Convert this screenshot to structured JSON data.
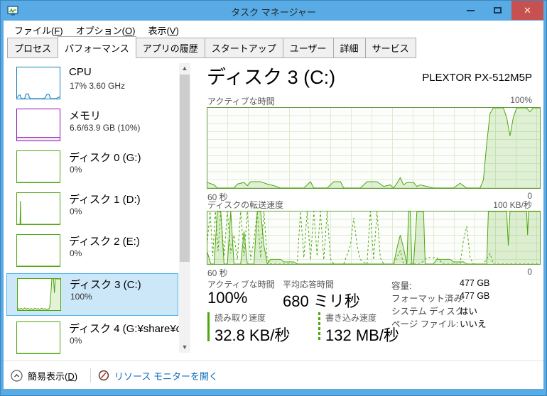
{
  "window": {
    "title": "タスク マネージャー"
  },
  "menu": {
    "items": [
      {
        "pre": "ファイル(",
        "key": "F",
        "post": ")"
      },
      {
        "pre": "オプション(",
        "key": "O",
        "post": ")"
      },
      {
        "pre": "表示(",
        "key": "V",
        "post": ")"
      }
    ]
  },
  "tabs": [
    {
      "label": "プロセス"
    },
    {
      "label": "パフォーマンス"
    },
    {
      "label": "アプリの履歴"
    },
    {
      "label": "スタートアップ"
    },
    {
      "label": "ユーザー"
    },
    {
      "label": "詳細"
    },
    {
      "label": "サービス"
    }
  ],
  "sidebar": {
    "items": [
      {
        "title": "CPU",
        "subtitle": "17% 3.60 GHz",
        "spark": {
          "color": "#117dbb",
          "fill": "#eaf5fc",
          "points": [
            [
              0,
              3
            ],
            [
              4,
              10
            ],
            [
              7,
              12
            ],
            [
              9,
              3
            ],
            [
              12,
              0
            ],
            [
              18,
              0
            ],
            [
              20,
              14
            ],
            [
              22,
              15
            ],
            [
              27,
              15
            ],
            [
              29,
              3
            ],
            [
              32,
              0
            ],
            [
              62,
              0
            ],
            [
              66,
              3
            ],
            [
              70,
              14
            ],
            [
              75,
              14
            ],
            [
              78,
              3
            ],
            [
              80,
              0
            ],
            [
              92,
              0
            ],
            [
              96,
              4
            ],
            [
              100,
              5
            ]
          ]
        }
      },
      {
        "title": "メモリ",
        "subtitle": "6.6/63.9 GB (10%)",
        "spark": {
          "color": "#8b12ae",
          "fill": "#f6eaf9",
          "points": [
            [
              0,
              10
            ],
            [
              100,
              10
            ]
          ]
        }
      },
      {
        "title": "ディスク 0 (G:)",
        "subtitle": "0%",
        "spark": {
          "color": "#4da60c",
          "fill": "#eef7e4",
          "points": [
            [
              0,
              0
            ],
            [
              100,
              0
            ]
          ]
        }
      },
      {
        "title": "ディスク 1 (D:)",
        "subtitle": "0%",
        "spark": {
          "color": "#4da60c",
          "fill": "#eef7e4",
          "points": [
            [
              0,
              0
            ],
            [
              7,
              0
            ],
            [
              8,
              75
            ],
            [
              9,
              0
            ],
            [
              100,
              0
            ]
          ]
        }
      },
      {
        "title": "ディスク 2 (E:)",
        "subtitle": "0%",
        "spark": {
          "color": "#4da60c",
          "fill": "#eef7e4",
          "points": [
            [
              0,
              0
            ],
            [
              100,
              0
            ]
          ]
        }
      },
      {
        "title": "ディスク 3 (C:)",
        "subtitle": "100%",
        "selected": true,
        "spark": {
          "color": "#4da60c",
          "fill": "#e4f2d6",
          "points": [
            [
              0,
              7
            ],
            [
              4,
              2
            ],
            [
              8,
              6
            ],
            [
              12,
              2
            ],
            [
              16,
              7
            ],
            [
              20,
              3
            ],
            [
              24,
              6
            ],
            [
              28,
              2
            ],
            [
              32,
              5
            ],
            [
              36,
              2
            ],
            [
              40,
              6
            ],
            [
              44,
              3
            ],
            [
              48,
              5
            ],
            [
              52,
              2
            ],
            [
              56,
              6
            ],
            [
              60,
              3
            ],
            [
              64,
              5
            ],
            [
              68,
              2
            ],
            [
              72,
              3
            ],
            [
              75,
              8
            ],
            [
              78,
              60
            ],
            [
              80,
              100
            ],
            [
              84,
              100
            ],
            [
              86,
              55
            ],
            [
              88,
              100
            ],
            [
              100,
              100
            ]
          ]
        }
      },
      {
        "title": "ディスク 4 (G:¥share¥c",
        "subtitle": "0%",
        "spark": {
          "color": "#4da60c",
          "fill": "#eef7e4",
          "points": [
            [
              0,
              0
            ],
            [
              100,
              0
            ]
          ]
        }
      }
    ]
  },
  "main": {
    "title": "ディスク 3 (C:)",
    "device": "PLEXTOR PX-512M5P",
    "stats": [
      {
        "label": "アクティブな時間",
        "value": "100%"
      },
      {
        "label": "平均応答時間",
        "value": "680 ミリ秒"
      },
      {
        "label": "読み取り速度",
        "value": "32.8 KB/秒"
      },
      {
        "label": "書き込み速度",
        "value": "132 MB/秒"
      }
    ],
    "details": [
      {
        "key": "容量:",
        "value": "477 GB"
      },
      {
        "key": "フォーマット済み:",
        "value": "477 GB"
      },
      {
        "key": "システム ディスク:",
        "value": "はい"
      },
      {
        "key": "ページ ファイル:",
        "value": "いいえ"
      }
    ]
  },
  "statusbar": {
    "simple_pre": "簡易表示(",
    "simple_key": "D",
    "simple_post": ")",
    "resmon_link": "リソース モニターを開く"
  },
  "colors": {
    "titlebar": "#58abe4",
    "close_button": "#c75050",
    "disk_green": "#4da60c",
    "cpu_blue": "#117dbb",
    "memory_purple": "#8b12ae",
    "selection": "#cbe7f8",
    "link": "#0b6cbd"
  },
  "chart_data": [
    {
      "type": "area",
      "title": "アクティブな時間",
      "ylabel_max": "100%",
      "xlabel_left": "60 秒",
      "xlabel_right": "0",
      "ylim": [
        0,
        100
      ],
      "xlim_seconds": [
        60,
        0
      ],
      "grid": true,
      "series": [
        {
          "name": "アクティブな時間",
          "color": "#4da60c",
          "fill": "rgba(77,166,12,0.16)",
          "points": [
            [
              0,
              7
            ],
            [
              2,
              4
            ],
            [
              3,
              0
            ],
            [
              8,
              0
            ],
            [
              9,
              5
            ],
            [
              11,
              7
            ],
            [
              12,
              3
            ],
            [
              13,
              8
            ],
            [
              16,
              8
            ],
            [
              18,
              5
            ],
            [
              20,
              3
            ],
            [
              22,
              0
            ],
            [
              29,
              0
            ],
            [
              31,
              8
            ],
            [
              32,
              0
            ],
            [
              36,
              0
            ],
            [
              38,
              8
            ],
            [
              40,
              8
            ],
            [
              41,
              0
            ],
            [
              46,
              0
            ],
            [
              48,
              8
            ],
            [
              51,
              8
            ],
            [
              53,
              2
            ],
            [
              55,
              4
            ],
            [
              56,
              0
            ],
            [
              57,
              6
            ],
            [
              58,
              13
            ],
            [
              59,
              4
            ],
            [
              60,
              7
            ],
            [
              62,
              7
            ],
            [
              63,
              2
            ],
            [
              64,
              4
            ],
            [
              66,
              2
            ],
            [
              68,
              0
            ],
            [
              74,
              0
            ],
            [
              76,
              6
            ],
            [
              78,
              0
            ],
            [
              82,
              0
            ],
            [
              83,
              10
            ],
            [
              84,
              55
            ],
            [
              85,
              93
            ],
            [
              86,
              100
            ],
            [
              89,
              100
            ],
            [
              90,
              88
            ],
            [
              91,
              65
            ],
            [
              92,
              88
            ],
            [
              93,
              100
            ],
            [
              96,
              100
            ],
            [
              97,
              95
            ],
            [
              98,
              100
            ],
            [
              100,
              100
            ]
          ]
        }
      ]
    },
    {
      "type": "line",
      "title": "ディスクの転送速度",
      "ylabel_max": "100 KB/秒",
      "xlabel_left": "60 秒",
      "xlabel_right": "0",
      "ylim": [
        0,
        100
      ],
      "xlim_seconds": [
        60,
        0
      ],
      "grid": true,
      "series": [
        {
          "name": "読み取り速度",
          "color": "#4da60c",
          "fill": "rgba(77,166,12,0.18)",
          "points": [
            [
              0,
              22
            ],
            [
              1,
              0
            ],
            [
              2,
              0
            ],
            [
              3,
              100
            ],
            [
              4,
              100
            ],
            [
              5,
              0
            ],
            [
              6,
              0
            ],
            [
              7,
              100
            ],
            [
              8,
              0
            ],
            [
              10,
              0
            ],
            [
              11,
              62
            ],
            [
              12,
              0
            ],
            [
              14,
              0
            ],
            [
              15,
              100
            ],
            [
              16,
              100
            ],
            [
              17,
              35
            ],
            [
              18,
              0
            ],
            [
              19,
              9
            ],
            [
              22,
              9
            ],
            [
              23,
              4
            ],
            [
              26,
              4
            ],
            [
              27,
              0
            ],
            [
              56,
              0
            ],
            [
              57,
              30
            ],
            [
              58,
              55
            ],
            [
              59,
              30
            ],
            [
              60,
              0
            ],
            [
              60.5,
              100
            ],
            [
              61,
              100
            ],
            [
              61.5,
              0
            ],
            [
              62,
              0
            ],
            [
              63,
              100
            ],
            [
              65,
              100
            ],
            [
              65.5,
              0
            ],
            [
              68,
              0
            ],
            [
              69,
              9
            ],
            [
              73,
              9
            ],
            [
              74,
              4
            ],
            [
              77,
              4
            ],
            [
              78,
              0
            ],
            [
              84,
              0
            ],
            [
              84.5,
              100
            ],
            [
              90,
              100
            ],
            [
              90.5,
              35
            ],
            [
              91,
              100
            ],
            [
              96,
              100
            ],
            [
              96.3,
              55
            ],
            [
              96.6,
              100
            ],
            [
              100,
              100
            ]
          ]
        },
        {
          "name": "書き込み速度",
          "color": "#4da60c",
          "dashed": true,
          "points": [
            [
              0,
              45
            ],
            [
              0.8,
              100
            ],
            [
              1.6,
              15
            ],
            [
              2.4,
              100
            ],
            [
              3.2,
              25
            ],
            [
              4,
              100
            ],
            [
              5,
              15
            ],
            [
              6,
              100
            ],
            [
              7,
              20
            ],
            [
              8,
              55
            ],
            [
              9,
              8
            ],
            [
              10,
              100
            ],
            [
              11,
              15
            ],
            [
              12,
              100
            ],
            [
              13,
              8
            ],
            [
              14,
              45
            ],
            [
              15,
              100
            ],
            [
              16,
              12
            ],
            [
              17,
              100
            ],
            [
              18,
              8
            ],
            [
              19,
              0
            ],
            [
              27,
              0
            ],
            [
              28,
              100
            ],
            [
              29,
              12
            ],
            [
              30,
              100
            ],
            [
              31,
              8
            ],
            [
              32,
              100
            ],
            [
              33,
              15
            ],
            [
              34,
              100
            ],
            [
              35,
              8
            ],
            [
              36,
              100
            ],
            [
              37,
              10
            ],
            [
              38,
              0
            ],
            [
              41,
              0
            ],
            [
              43,
              35
            ],
            [
              44,
              88
            ],
            [
              45,
              35
            ],
            [
              46,
              8
            ],
            [
              48,
              0
            ],
            [
              49,
              100
            ],
            [
              50,
              8
            ],
            [
              51,
              100
            ],
            [
              52,
              12
            ],
            [
              53,
              0
            ],
            [
              56,
              0
            ],
            [
              58,
              25
            ],
            [
              59,
              0
            ],
            [
              64,
              0
            ],
            [
              66,
              12
            ],
            [
              69,
              12
            ],
            [
              71,
              0
            ],
            [
              76,
              0
            ],
            [
              77,
              45
            ],
            [
              78,
              72
            ],
            [
              79,
              12
            ],
            [
              80,
              0
            ],
            [
              83,
              0
            ],
            [
              85,
              20
            ],
            [
              86,
              0
            ],
            [
              100,
              0
            ]
          ]
        }
      ]
    }
  ]
}
